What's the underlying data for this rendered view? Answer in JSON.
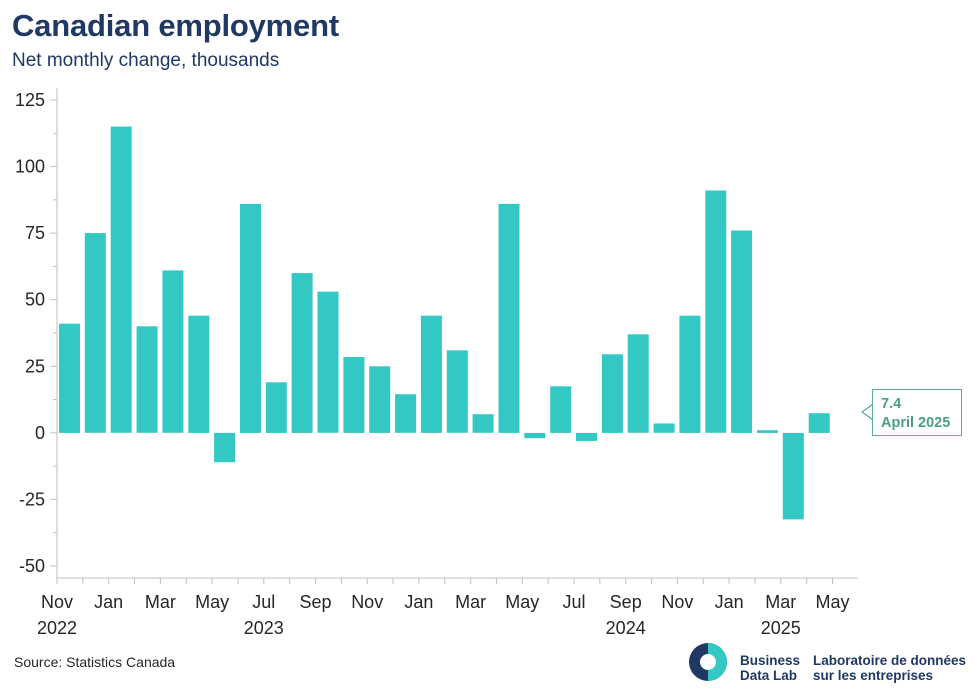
{
  "header": {
    "title": "Canadian employment",
    "subtitle": "Net monthly change, thousands"
  },
  "footer": {
    "source": "Source: Statistics Canada",
    "brand_en_line1": "Business",
    "brand_en_line2": "Data Lab",
    "brand_fr_line1": "Laboratoire de données",
    "brand_fr_line2": "sur les entreprises"
  },
  "callout": {
    "value": "7.4",
    "label": "April 2025"
  },
  "colors": {
    "bar": "#33c8c3",
    "title": "#1f3864",
    "callout": "#4aa07e"
  },
  "chart_data": {
    "type": "bar",
    "title": "Canadian employment",
    "subtitle": "Net monthly change, thousands",
    "categories": [
      "Nov 2022",
      "Dec 2022",
      "Jan 2023",
      "Feb 2023",
      "Mar 2023",
      "Apr 2023",
      "May 2023",
      "Jun 2023",
      "Jul 2023",
      "Aug 2023",
      "Sep 2023",
      "Oct 2023",
      "Nov 2023",
      "Dec 2023",
      "Jan 2024",
      "Feb 2024",
      "Mar 2024",
      "Apr 2024",
      "May 2024",
      "Jun 2024",
      "Jul 2024",
      "Aug 2024",
      "Sep 2024",
      "Oct 2024",
      "Nov 2024",
      "Dec 2024",
      "Jan 2025",
      "Feb 2025",
      "Mar 2025",
      "Apr 2025"
    ],
    "values": [
      41,
      75,
      115,
      40,
      61,
      44,
      -11,
      86,
      19,
      60,
      53,
      28.5,
      25,
      14.5,
      44,
      31,
      7,
      86,
      -2,
      17.5,
      -3,
      29.5,
      37,
      3.5,
      44,
      91,
      76,
      1,
      -32.5,
      7.4
    ],
    "ylim": [
      -50,
      125
    ],
    "yticks": [
      125,
      100,
      75,
      50,
      25,
      0,
      -25,
      -50
    ],
    "xtick_labels": [
      {
        "month": "Nov",
        "year": "2022"
      },
      {
        "month": "Jan",
        "year": ""
      },
      {
        "month": "Mar",
        "year": ""
      },
      {
        "month": "May",
        "year": ""
      },
      {
        "month": "Jul",
        "year": "2023"
      },
      {
        "month": "Sep",
        "year": ""
      },
      {
        "month": "Nov",
        "year": ""
      },
      {
        "month": "Jan",
        "year": ""
      },
      {
        "month": "Mar",
        "year": ""
      },
      {
        "month": "May",
        "year": ""
      },
      {
        "month": "Jul",
        "year": ""
      },
      {
        "month": "Sep",
        "year": "2024"
      },
      {
        "month": "Nov",
        "year": ""
      },
      {
        "month": "Jan",
        "year": ""
      },
      {
        "month": "Mar",
        "year": "2025"
      },
      {
        "month": "May",
        "year": ""
      }
    ],
    "grid": false
  }
}
